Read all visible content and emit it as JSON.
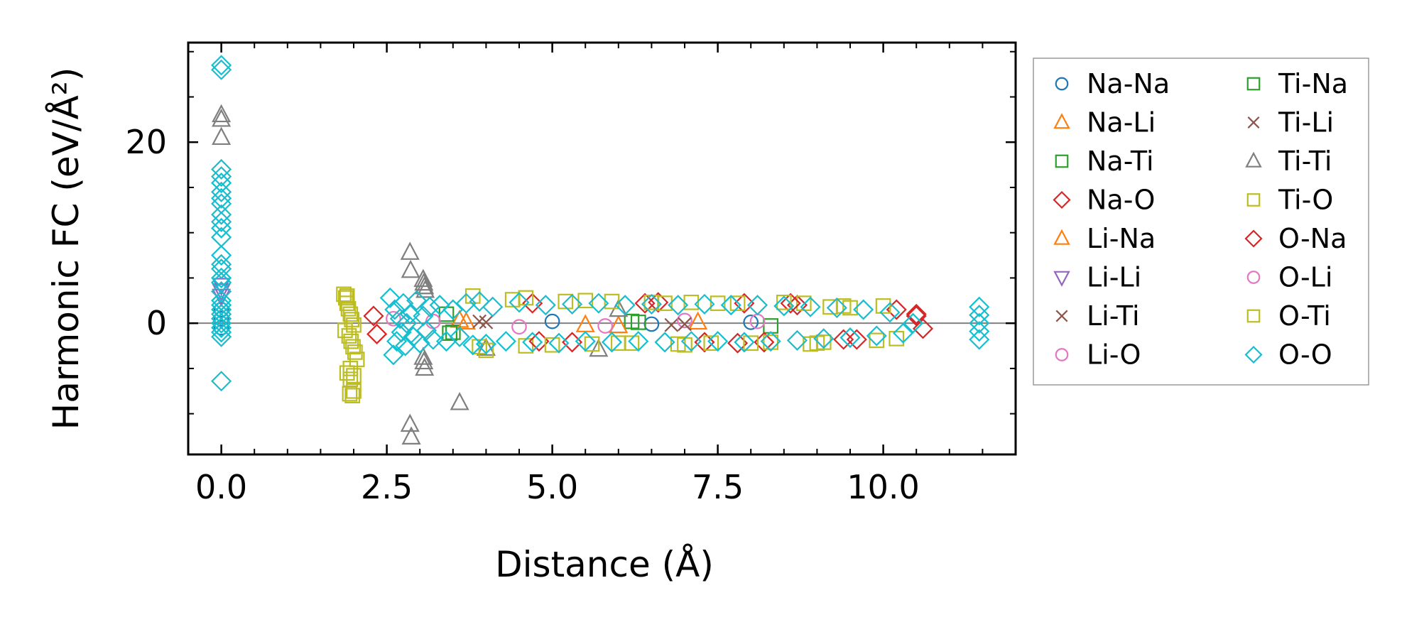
{
  "chart_data": {
    "type": "scatter",
    "title": "",
    "xlabel": "Distance (Å)",
    "ylabel": "Harmonic FC (eV/Å²)",
    "xlim": [
      -0.5,
      12.0
    ],
    "ylim": [
      -14.5,
      31.0
    ],
    "grid": false,
    "zero_line": true,
    "legend_position": "outside-right",
    "legend_columns": 2,
    "x_ticks": [
      0.0,
      2.5,
      5.0,
      7.5,
      10.0
    ],
    "x_tick_labels": [
      "0.0",
      "2.5",
      "5.0",
      "7.5",
      "10.0"
    ],
    "y_ticks": [
      0,
      20
    ],
    "y_tick_labels": [
      "0",
      "20"
    ],
    "x_minor_step": 0.5,
    "y_minor_step": 5,
    "series": [
      {
        "name": "Na-Na",
        "marker": "circle",
        "color": "#1f77b4",
        "x": [
          0,
          0,
          0,
          5.0,
          6.5,
          8.0
        ],
        "y": [
          1.5,
          0.5,
          -0.5,
          0.2,
          -0.1,
          0.1
        ]
      },
      {
        "name": "Na-Li",
        "marker": "triangle-up",
        "color": "#ff7f0e",
        "x": [
          3.6,
          5.5,
          7.2
        ],
        "y": [
          0.3,
          -0.2,
          0.1
        ]
      },
      {
        "name": "Na-Ti",
        "marker": "square",
        "color": "#2ca02c",
        "x": [
          3.4,
          3.5,
          6.2,
          8.3
        ],
        "y": [
          1.0,
          -1.0,
          0.2,
          -0.3
        ]
      },
      {
        "name": "Na-O",
        "marker": "diamond",
        "color": "#d62728",
        "x": [
          2.3,
          2.35,
          4.7,
          5.3,
          6.6,
          7.3,
          7.9,
          8.2,
          8.7,
          9.4,
          10.2,
          10.5,
          10.6
        ],
        "y": [
          0.8,
          -1.2,
          2.2,
          -2.1,
          2.3,
          -2.1,
          2.2,
          -2.1,
          2.0,
          -1.8,
          1.5,
          0.8,
          -0.6
        ]
      },
      {
        "name": "Li-Na",
        "marker": "triangle-up",
        "color": "#ff7f0e",
        "x": [
          3.7,
          6.0
        ],
        "y": [
          0.1,
          -0.3
        ]
      },
      {
        "name": "Li-Li",
        "marker": "triangle-down",
        "color": "#9467bd",
        "x": [
          0,
          0,
          0
        ],
        "y": [
          4.2,
          3.6,
          3.0
        ]
      },
      {
        "name": "Li-Ti",
        "marker": "x",
        "color": "#8c564b",
        "x": [
          3.9,
          6.8
        ],
        "y": [
          0.2,
          -0.2
        ]
      },
      {
        "name": "Li-O",
        "marker": "circle",
        "color": "#e377c2",
        "x": [
          2.6,
          4.5,
          7.0
        ],
        "y": [
          0.5,
          -0.4,
          0.3
        ]
      },
      {
        "name": "Ti-Na",
        "marker": "square",
        "color": "#2ca02c",
        "x": [
          3.45,
          6.3
        ],
        "y": [
          -1.1,
          0.1
        ]
      },
      {
        "name": "Ti-Li",
        "marker": "x",
        "color": "#8c564b",
        "x": [
          4.0,
          7.0
        ],
        "y": [
          0.1,
          -0.1
        ]
      },
      {
        "name": "Ti-Ti",
        "marker": "triangle-up",
        "color": "#7f7f7f",
        "x": [
          0,
          0,
          0,
          2.85,
          2.86,
          2.85,
          2.87,
          3.05,
          3.06,
          3.07,
          3.08,
          3.05,
          3.06,
          3.07,
          3.6,
          4.0,
          5.7,
          6.0
        ],
        "y": [
          23.0,
          22.5,
          20.5,
          7.8,
          5.8,
          -11.2,
          -12.6,
          4.8,
          4.4,
          4.0,
          3.6,
          -3.8,
          -4.3,
          -5.0,
          -8.8,
          -2.8,
          -2.9,
          1.5
        ]
      },
      {
        "name": "Ti-O",
        "marker": "square",
        "color": "#bcbd22",
        "x": [
          1.85,
          1.88,
          1.9,
          1.92,
          1.95,
          1.97,
          2.0,
          1.87,
          1.93,
          1.96,
          1.99,
          2.02,
          2.05,
          1.9,
          1.95,
          2.0,
          1.94,
          1.98,
          3.8,
          4.0,
          4.6,
          4.6,
          5.2,
          5.6,
          5.9,
          6.2,
          6.7,
          6.9,
          7.1,
          7.4,
          7.8,
          8.3,
          8.8,
          8.9,
          9.1,
          9.2,
          9.5,
          9.9,
          10.0,
          10.2
        ],
        "y": [
          3.2,
          2.8,
          2.2,
          1.6,
          1.0,
          0.4,
          -0.2,
          -0.8,
          -1.4,
          -2.0,
          -2.6,
          -3.2,
          -4.0,
          -5.5,
          -6.2,
          -5.8,
          -7.8,
          -8.0,
          3.0,
          -3.0,
          2.8,
          -2.5,
          2.4,
          -2.3,
          2.4,
          -2.2,
          2.2,
          -2.3,
          2.3,
          -2.2,
          2.2,
          -2.1,
          2.2,
          -2.3,
          -2.1,
          1.8,
          1.7,
          -1.9,
          1.9,
          -1.7
        ]
      },
      {
        "name": "O-Na",
        "marker": "diamond",
        "color": "#d62728",
        "x": [
          4.8,
          6.4,
          7.8,
          8.6,
          9.6,
          10.5
        ],
        "y": [
          -2.0,
          2.2,
          -2.2,
          2.2,
          -1.8,
          1.0
        ]
      },
      {
        "name": "O-Li",
        "marker": "circle",
        "color": "#e377c2",
        "x": [
          3.2,
          5.8,
          8.1
        ],
        "y": [
          0.2,
          -0.3,
          0.2
        ]
      },
      {
        "name": "O-Ti",
        "marker": "square",
        "color": "#bcbd22",
        "x": [
          1.9,
          1.95,
          2.0,
          3.9,
          4.4,
          5.0,
          5.5,
          6.0,
          6.5,
          7.0,
          7.5,
          8.0,
          8.5,
          9.0,
          9.4
        ],
        "y": [
          3.0,
          -5.0,
          -7.5,
          -2.6,
          2.6,
          -2.4,
          2.5,
          -2.2,
          2.3,
          -2.4,
          2.2,
          -2.2,
          2.3,
          -2.2,
          1.9
        ]
      },
      {
        "name": "O-O",
        "marker": "diamond",
        "color": "#17becf",
        "x": [
          0,
          0,
          0,
          0,
          0,
          0,
          0,
          0,
          0,
          0,
          0,
          0,
          0,
          0,
          0,
          0,
          0,
          0,
          0,
          0,
          0,
          0,
          0,
          0,
          0,
          0,
          0,
          0,
          2.55,
          2.6,
          2.62,
          2.65,
          2.7,
          2.72,
          2.75,
          2.78,
          2.8,
          2.85,
          2.9,
          2.95,
          3.0,
          3.05,
          3.1,
          3.15,
          3.2,
          3.3,
          3.4,
          3.5,
          3.6,
          3.7,
          3.8,
          3.9,
          4.0,
          4.1,
          4.3,
          4.5,
          4.7,
          4.9,
          5.1,
          5.3,
          5.5,
          5.7,
          5.9,
          6.1,
          6.3,
          6.5,
          6.7,
          6.9,
          7.1,
          7.3,
          7.5,
          7.7,
          7.9,
          8.1,
          8.3,
          8.5,
          8.7,
          8.9,
          9.1,
          9.3,
          9.5,
          9.7,
          9.9,
          10.1,
          10.3,
          10.45,
          11.45,
          11.45,
          11.45,
          11.45,
          11.45
        ],
        "y": [
          28.5,
          28.0,
          17.0,
          16.2,
          15.5,
          14.5,
          13.8,
          13.2,
          12.0,
          11.2,
          10.5,
          9.5,
          7.5,
          6.5,
          6.0,
          5.0,
          4.5,
          3.5,
          2.5,
          2.0,
          1.5,
          1.0,
          0.5,
          0.0,
          -0.5,
          -1.0,
          -1.5,
          -6.4,
          2.8,
          -3.5,
          1.5,
          -2.0,
          0.5,
          -1.0,
          2.2,
          -2.5,
          0.0,
          1.0,
          -1.5,
          2.5,
          -2.2,
          0.8,
          -0.8,
          1.8,
          -1.8,
          2.0,
          -2.0,
          1.5,
          -1.5,
          2.2,
          -2.4,
          2.4,
          -2.3,
          1.8,
          -2.0,
          2.3,
          -2.1,
          2.0,
          -2.2,
          2.1,
          -2.0,
          2.2,
          -2.1,
          2.0,
          -2.0,
          2.1,
          -2.1,
          2.0,
          -2.0,
          2.1,
          -2.0,
          2.0,
          -2.1,
          2.0,
          -2.0,
          1.9,
          -1.9,
          1.8,
          -1.7,
          1.7,
          -1.6,
          1.5,
          -1.4,
          1.2,
          -1.1,
          0.0,
          1.8,
          0.9,
          0.0,
          -0.9,
          -1.8
        ]
      }
    ]
  }
}
